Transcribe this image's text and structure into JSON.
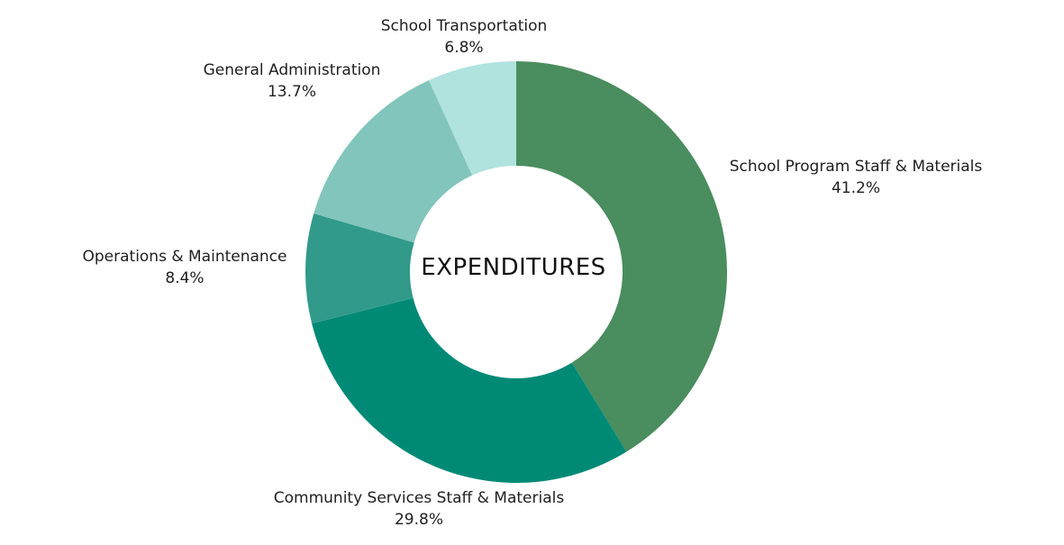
{
  "chart_data": {
    "type": "pie",
    "title": "EXPENDITURES",
    "slices": [
      {
        "label": "School Program Staff & Materials",
        "value": 41.2,
        "display": "41.2%",
        "color": "#4a8d5e"
      },
      {
        "label": "Community Services Staff & Materials",
        "value": 29.8,
        "display": "29.8%",
        "color": "#008a76"
      },
      {
        "label": "Operations & Maintenance",
        "value": 8.4,
        "display": "8.4%",
        "color": "#319a8a"
      },
      {
        "label": "General Administration",
        "value": 13.7,
        "display": "13.7%",
        "color": "#82c5bc"
      },
      {
        "label": "School Transportation",
        "value": 6.8,
        "display": "6.8%",
        "color": "#b0e2de"
      }
    ],
    "style": "donut",
    "start": "top",
    "direction": "clockwise"
  }
}
